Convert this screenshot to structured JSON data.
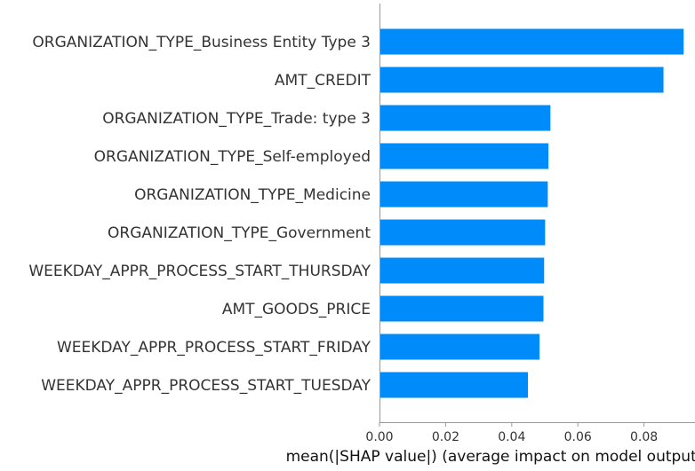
{
  "chart_data": {
    "type": "bar",
    "orientation": "horizontal",
    "categories": [
      "ORGANIZATION_TYPE_Business Entity Type 3",
      "AMT_CREDIT",
      "ORGANIZATION_TYPE_Trade: type 3",
      "ORGANIZATION_TYPE_Self-employed",
      "ORGANIZATION_TYPE_Medicine",
      "ORGANIZATION_TYPE_Government",
      "WEEKDAY_APPR_PROCESS_START_THURSDAY",
      "AMT_GOODS_PRICE",
      "WEEKDAY_APPR_PROCESS_START_FRIDAY",
      "WEEKDAY_APPR_PROCESS_START_TUESDAY"
    ],
    "values": [
      0.092,
      0.0859,
      0.0517,
      0.0511,
      0.0509,
      0.0501,
      0.0498,
      0.0496,
      0.0484,
      0.0449
    ],
    "title": "",
    "xlabel": "mean(|SHAP value|) (average impact on model output)",
    "ylabel": "",
    "xlim": [
      0,
      0.0945
    ],
    "xticks": [
      0.0,
      0.02,
      0.04,
      0.06,
      0.08
    ],
    "xtick_labels": [
      "0.00",
      "0.02",
      "0.04",
      "0.06",
      "0.08"
    ],
    "grid": false,
    "bar_color": "#008bfb"
  }
}
